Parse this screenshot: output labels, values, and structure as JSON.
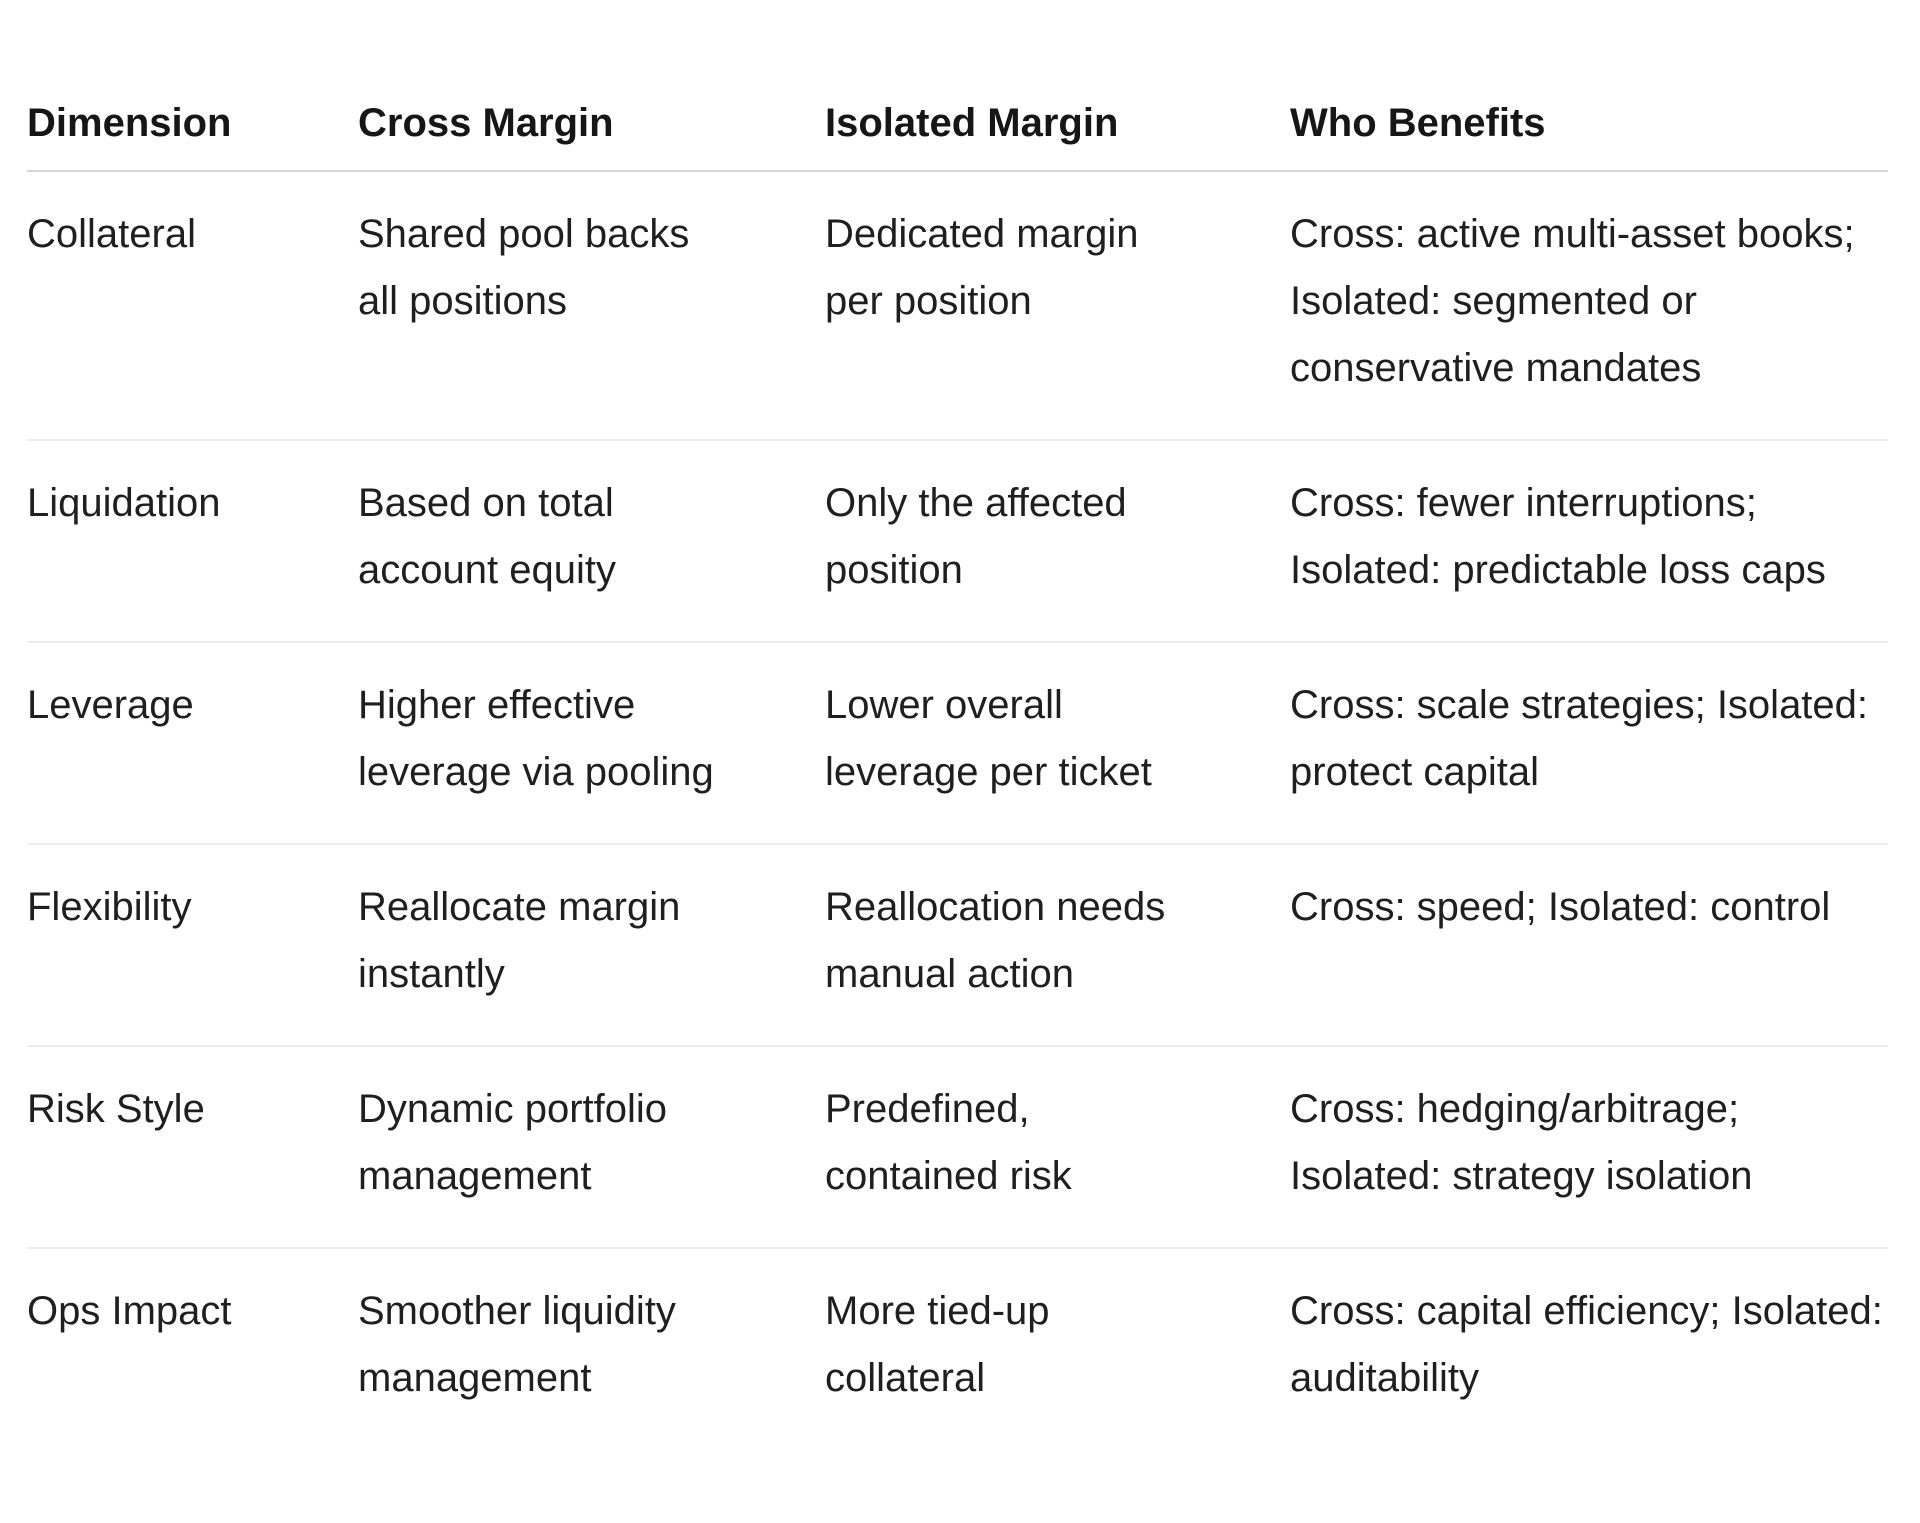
{
  "colors": {
    "background": "#ffffff",
    "text": "#1f1f1f",
    "header_text": "#161616",
    "header_rule": "#d8d8d8",
    "row_rule": "#ededed"
  },
  "table": {
    "columns": [
      "Dimension",
      "Cross Margin",
      "Isolated Margin",
      "Who Benefits"
    ],
    "rows": [
      {
        "dimension": "Collateral",
        "cross": "Shared pool backs all positions",
        "isolated": "Dedicated margin per position",
        "benefits": "Cross: active multi-asset books; Isolated: segmented or conservative mandates"
      },
      {
        "dimension": "Liquidation",
        "cross": "Based on total account equity",
        "isolated": "Only the affected position",
        "benefits": "Cross: fewer interruptions; Isolated: predictable loss caps"
      },
      {
        "dimension": "Leverage",
        "cross": "Higher effective leverage via pooling",
        "isolated": "Lower overall leverage per ticket",
        "benefits": "Cross: scale strategies; Isolated: protect capital"
      },
      {
        "dimension": "Flexibility",
        "cross": "Reallocate margin instantly",
        "isolated": "Reallocation needs manual action",
        "benefits": "Cross: speed; Isolated: control"
      },
      {
        "dimension": "Risk Style",
        "cross": "Dynamic portfolio management",
        "isolated": "Predefined, contained risk",
        "benefits": "Cross: hedging/arbitrage; Isolated: strategy isolation"
      },
      {
        "dimension": "Ops Impact",
        "cross": "Smoother liquidity management",
        "isolated": "More tied-up collateral",
        "benefits": "Cross: capital efficiency; Isolated: auditability"
      }
    ]
  }
}
